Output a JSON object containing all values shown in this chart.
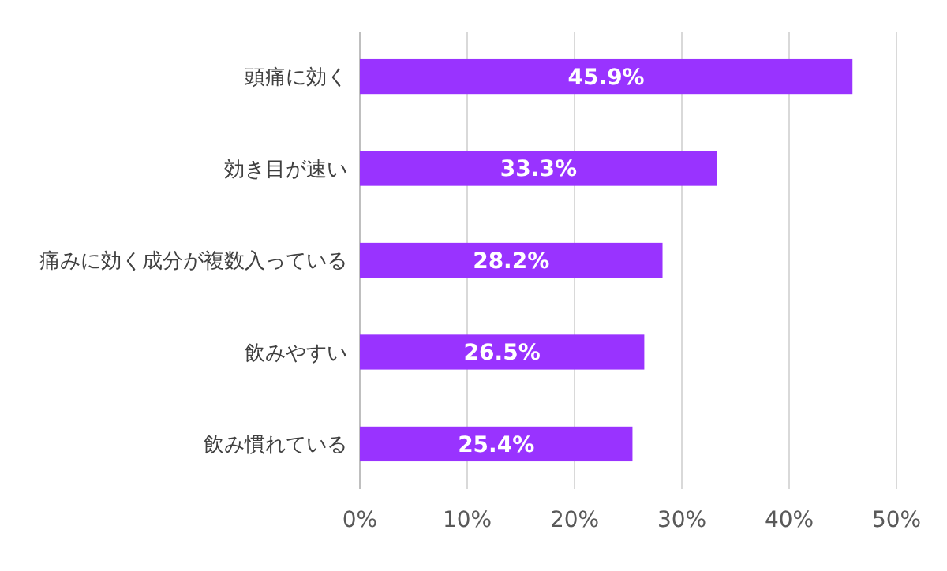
{
  "chart_data": {
    "type": "bar",
    "orientation": "horizontal",
    "categories": [
      "頭痛に効く",
      "効き目が速い",
      "痛みに効く成分が複数入っている",
      "飲みやすい",
      "飲み慣れている"
    ],
    "values": [
      45.9,
      33.3,
      28.2,
      26.5,
      25.4
    ],
    "value_labels": [
      "45.9%",
      "33.3%",
      "28.2%",
      "26.5%",
      "25.4%"
    ],
    "color": "#9933ff",
    "xlim": [
      0,
      50
    ],
    "xticks": [
      {
        "value": 0,
        "label": "0%"
      },
      {
        "value": 10,
        "label": "10%"
      },
      {
        "value": 20,
        "label": "20%"
      },
      {
        "value": 30,
        "label": "30%"
      },
      {
        "value": 40,
        "label": "40%"
      },
      {
        "value": 50,
        "label": "50%"
      }
    ],
    "grid": "x"
  }
}
